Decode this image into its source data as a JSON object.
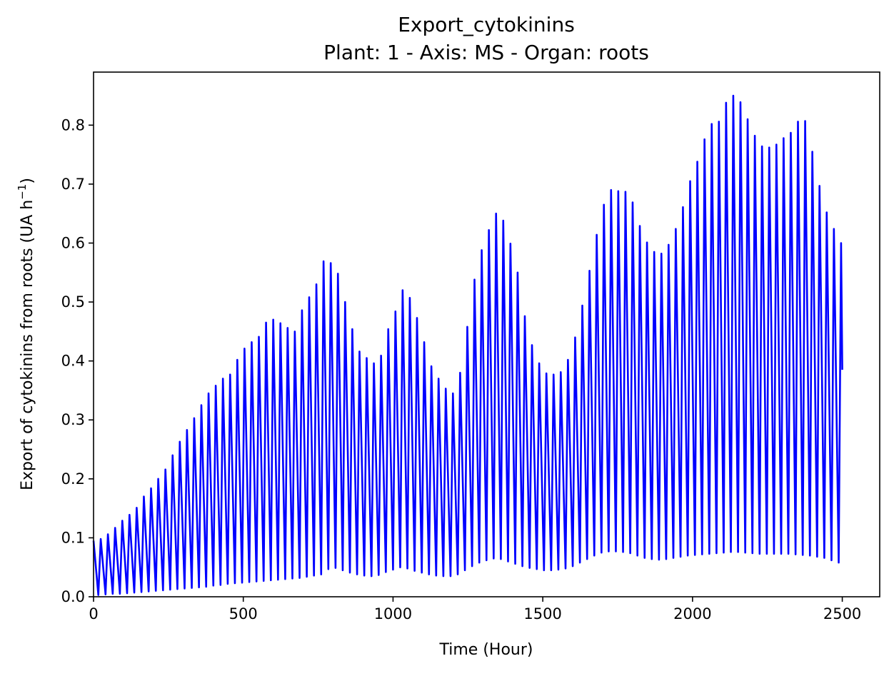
{
  "chart_data": {
    "type": "line",
    "title": "Export_cytokinins",
    "subtitle": "Plant: 1 - Axis: MS - Organ: roots",
    "xlabel": "Time (Hour)",
    "ylabel_main": "Export of cytokinins from roots (UA h",
    "ylabel_sup": "−1",
    "ylabel_close": ")",
    "xlim": [
      0,
      2625
    ],
    "ylim": [
      0,
      0.89
    ],
    "x_ticks": [
      0,
      500,
      1000,
      1500,
      2000,
      2500
    ],
    "x_tick_labels": [
      "0",
      "500",
      "1000",
      "1500",
      "2000",
      "2500"
    ],
    "y_ticks": [
      0,
      0.1,
      0.2,
      0.3,
      0.4,
      0.5,
      0.6,
      0.7,
      0.8
    ],
    "y_tick_labels": [
      "0.0",
      "0.1",
      "0.2",
      "0.3",
      "0.4",
      "0.5",
      "0.6",
      "0.7",
      "0.8"
    ],
    "grid": false,
    "legend": "none",
    "series": [
      {
        "color": "#0000ff",
        "period_hours": 24,
        "t_start": 0,
        "t_end": 2500,
        "final_value": 0.385,
        "daily_peaks": [
          [
            0,
            0.095
          ],
          [
            24,
            0.098
          ],
          [
            48,
            0.106
          ],
          [
            72,
            0.117
          ],
          [
            96,
            0.129
          ],
          [
            120,
            0.139
          ],
          [
            144,
            0.151
          ],
          [
            168,
            0.17
          ],
          [
            192,
            0.184
          ],
          [
            216,
            0.2
          ],
          [
            240,
            0.216
          ],
          [
            264,
            0.24
          ],
          [
            288,
            0.263
          ],
          [
            312,
            0.283
          ],
          [
            336,
            0.303
          ],
          [
            360,
            0.325
          ],
          [
            384,
            0.345
          ],
          [
            408,
            0.358
          ],
          [
            432,
            0.37
          ],
          [
            456,
            0.377
          ],
          [
            480,
            0.402
          ],
          [
            504,
            0.421
          ],
          [
            528,
            0.432
          ],
          [
            552,
            0.441
          ],
          [
            576,
            0.465
          ],
          [
            600,
            0.47
          ],
          [
            624,
            0.464
          ],
          [
            648,
            0.456
          ],
          [
            672,
            0.45
          ],
          [
            696,
            0.486
          ],
          [
            720,
            0.508
          ],
          [
            744,
            0.53
          ],
          [
            768,
            0.569
          ],
          [
            792,
            0.566
          ],
          [
            816,
            0.548
          ],
          [
            840,
            0.5
          ],
          [
            864,
            0.454
          ],
          [
            888,
            0.416
          ],
          [
            912,
            0.405
          ],
          [
            936,
            0.396
          ],
          [
            960,
            0.409
          ],
          [
            984,
            0.454
          ],
          [
            1008,
            0.484
          ],
          [
            1032,
            0.52
          ],
          [
            1056,
            0.507
          ],
          [
            1080,
            0.473
          ],
          [
            1104,
            0.432
          ],
          [
            1128,
            0.391
          ],
          [
            1152,
            0.37
          ],
          [
            1176,
            0.353
          ],
          [
            1200,
            0.345
          ],
          [
            1224,
            0.38
          ],
          [
            1248,
            0.458
          ],
          [
            1272,
            0.538
          ],
          [
            1296,
            0.588
          ],
          [
            1320,
            0.622
          ],
          [
            1344,
            0.65
          ],
          [
            1368,
            0.638
          ],
          [
            1392,
            0.599
          ],
          [
            1416,
            0.55
          ],
          [
            1440,
            0.476
          ],
          [
            1464,
            0.427
          ],
          [
            1488,
            0.396
          ],
          [
            1512,
            0.379
          ],
          [
            1536,
            0.377
          ],
          [
            1560,
            0.381
          ],
          [
            1584,
            0.402
          ],
          [
            1608,
            0.44
          ],
          [
            1632,
            0.494
          ],
          [
            1656,
            0.553
          ],
          [
            1680,
            0.614
          ],
          [
            1704,
            0.665
          ],
          [
            1728,
            0.69
          ],
          [
            1752,
            0.688
          ],
          [
            1776,
            0.687
          ],
          [
            1800,
            0.669
          ],
          [
            1824,
            0.629
          ],
          [
            1848,
            0.601
          ],
          [
            1872,
            0.585
          ],
          [
            1896,
            0.582
          ],
          [
            1920,
            0.597
          ],
          [
            1944,
            0.624
          ],
          [
            1968,
            0.661
          ],
          [
            1992,
            0.705
          ],
          [
            2016,
            0.738
          ],
          [
            2040,
            0.776
          ],
          [
            2064,
            0.802
          ],
          [
            2088,
            0.806
          ],
          [
            2112,
            0.838
          ],
          [
            2136,
            0.85
          ],
          [
            2160,
            0.839
          ],
          [
            2184,
            0.81
          ],
          [
            2208,
            0.782
          ],
          [
            2232,
            0.764
          ],
          [
            2256,
            0.762
          ],
          [
            2280,
            0.767
          ],
          [
            2304,
            0.778
          ],
          [
            2328,
            0.787
          ],
          [
            2352,
            0.806
          ],
          [
            2376,
            0.807
          ],
          [
            2400,
            0.755
          ],
          [
            2424,
            0.697
          ],
          [
            2448,
            0.652
          ],
          [
            2472,
            0.624
          ],
          [
            2496,
            0.6
          ]
        ],
        "daily_troughs": [
          [
            16,
            0.003
          ],
          [
            40,
            0.004
          ],
          [
            64,
            0.005
          ],
          [
            88,
            0.005
          ],
          [
            112,
            0.006
          ],
          [
            136,
            0.007
          ],
          [
            160,
            0.008
          ],
          [
            184,
            0.009
          ],
          [
            208,
            0.01
          ],
          [
            232,
            0.011
          ],
          [
            256,
            0.012
          ],
          [
            280,
            0.013
          ],
          [
            304,
            0.014
          ],
          [
            328,
            0.015
          ],
          [
            352,
            0.016
          ],
          [
            376,
            0.017
          ],
          [
            400,
            0.019
          ],
          [
            424,
            0.02
          ],
          [
            448,
            0.022
          ],
          [
            472,
            0.023
          ],
          [
            496,
            0.024
          ],
          [
            520,
            0.025
          ],
          [
            544,
            0.026
          ],
          [
            568,
            0.027
          ],
          [
            592,
            0.028
          ],
          [
            616,
            0.029
          ],
          [
            640,
            0.03
          ],
          [
            664,
            0.031
          ],
          [
            688,
            0.032
          ],
          [
            712,
            0.034
          ],
          [
            736,
            0.036
          ],
          [
            760,
            0.038
          ],
          [
            784,
            0.047
          ],
          [
            808,
            0.049
          ],
          [
            832,
            0.045
          ],
          [
            856,
            0.041
          ],
          [
            880,
            0.038
          ],
          [
            904,
            0.036
          ],
          [
            928,
            0.035
          ],
          [
            952,
            0.037
          ],
          [
            976,
            0.042
          ],
          [
            1000,
            0.046
          ],
          [
            1024,
            0.05
          ],
          [
            1048,
            0.048
          ],
          [
            1072,
            0.044
          ],
          [
            1096,
            0.041
          ],
          [
            1120,
            0.038
          ],
          [
            1144,
            0.036
          ],
          [
            1168,
            0.035
          ],
          [
            1192,
            0.035
          ],
          [
            1216,
            0.038
          ],
          [
            1240,
            0.045
          ],
          [
            1264,
            0.052
          ],
          [
            1288,
            0.058
          ],
          [
            1312,
            0.062
          ],
          [
            1336,
            0.065
          ],
          [
            1360,
            0.064
          ],
          [
            1384,
            0.06
          ],
          [
            1408,
            0.056
          ],
          [
            1432,
            0.052
          ],
          [
            1456,
            0.049
          ],
          [
            1480,
            0.047
          ],
          [
            1504,
            0.045
          ],
          [
            1528,
            0.045
          ],
          [
            1552,
            0.046
          ],
          [
            1576,
            0.048
          ],
          [
            1600,
            0.052
          ],
          [
            1624,
            0.058
          ],
          [
            1648,
            0.064
          ],
          [
            1672,
            0.07
          ],
          [
            1696,
            0.075
          ],
          [
            1720,
            0.077
          ],
          [
            1744,
            0.077
          ],
          [
            1768,
            0.076
          ],
          [
            1792,
            0.074
          ],
          [
            1816,
            0.07
          ],
          [
            1840,
            0.066
          ],
          [
            1864,
            0.064
          ],
          [
            1888,
            0.063
          ],
          [
            1912,
            0.064
          ],
          [
            1936,
            0.066
          ],
          [
            1960,
            0.068
          ],
          [
            1984,
            0.07
          ],
          [
            2008,
            0.071
          ],
          [
            2032,
            0.072
          ],
          [
            2056,
            0.073
          ],
          [
            2080,
            0.074
          ],
          [
            2104,
            0.075
          ],
          [
            2128,
            0.076
          ],
          [
            2152,
            0.076
          ],
          [
            2176,
            0.075
          ],
          [
            2200,
            0.074
          ],
          [
            2224,
            0.073
          ],
          [
            2248,
            0.073
          ],
          [
            2272,
            0.073
          ],
          [
            2296,
            0.073
          ],
          [
            2320,
            0.073
          ],
          [
            2344,
            0.072
          ],
          [
            2368,
            0.071
          ],
          [
            2392,
            0.07
          ],
          [
            2416,
            0.068
          ],
          [
            2440,
            0.066
          ],
          [
            2464,
            0.062
          ],
          [
            2488,
            0.058
          ]
        ]
      }
    ]
  }
}
